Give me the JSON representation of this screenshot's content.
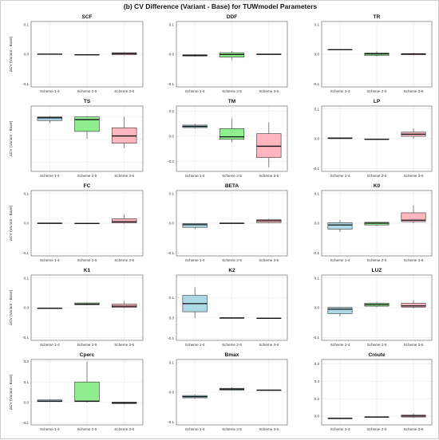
{
  "title": "(b) CV Difference (Variant - Base) for TUWmodel Parameters",
  "ylabel": "ΔCV (Variant - Base)",
  "colors": {
    "Scheme 1-4": "#add8e6",
    "Scheme 2-5": "#90ee90",
    "Scheme 3-6": "#ffb6c1"
  },
  "chart_data": [
    {
      "type": "box",
      "title": "SCF",
      "ylim": [
        -0.11,
        0.11
      ],
      "yticks": [
        -0.1,
        0,
        0.1
      ],
      "tick_labels": [
        "-0.1",
        "0.0",
        "0.1"
      ],
      "categories": [
        "Scheme 1-4",
        "Scheme 2-5",
        "Scheme 3-6"
      ],
      "boxes": [
        {
          "min": 0.0,
          "q1": 0.0,
          "median": 0.0,
          "q3": 0.001,
          "max": 0.001
        },
        {
          "min": -0.002,
          "q1": -0.002,
          "median": -0.002,
          "q3": -0.001,
          "max": -0.001
        },
        {
          "min": -0.004,
          "q1": -0.002,
          "median": 0.002,
          "q3": 0.005,
          "max": 0.007
        }
      ]
    },
    {
      "type": "box",
      "title": "DDF",
      "ylim": [
        -0.11,
        0.11
      ],
      "yticks": [
        -0.1,
        0,
        0.1
      ],
      "tick_labels": [
        "-0.1",
        "0.0",
        "0.1"
      ],
      "categories": [
        "Scheme 1-4",
        "Scheme 2-5",
        "Scheme 3-6"
      ],
      "boxes": [
        {
          "min": -0.008,
          "q1": -0.006,
          "median": -0.004,
          "q3": -0.002,
          "max": 0.0
        },
        {
          "min": -0.02,
          "q1": -0.01,
          "median": -0.001,
          "q3": 0.005,
          "max": 0.01
        },
        {
          "min": -0.002,
          "q1": -0.001,
          "median": 0.0,
          "q3": 0.0,
          "max": 0.001
        }
      ]
    },
    {
      "type": "box",
      "title": "TR",
      "ylim": [
        -0.11,
        0.11
      ],
      "yticks": [
        -0.1,
        0,
        0.1
      ],
      "tick_labels": [
        "-0.1",
        "0.0",
        "0.1"
      ],
      "categories": [
        "Scheme 1-4",
        "Scheme 2-5",
        "Scheme 3-6"
      ],
      "boxes": [
        {
          "min": 0.014,
          "q1": 0.015,
          "median": 0.015,
          "q3": 0.016,
          "max": 0.016
        },
        {
          "min": -0.008,
          "q1": -0.004,
          "median": 0.001,
          "q3": 0.004,
          "max": 0.01
        },
        {
          "min": -0.004,
          "q1": -0.002,
          "median": 0.001,
          "q3": 0.002,
          "max": 0.005
        }
      ]
    },
    {
      "type": "box",
      "title": "TS",
      "ylim": [
        -0.06,
        0.012
      ],
      "yticks": [
        -0.05,
        -0.025,
        0
      ],
      "tick_labels": [
        "",
        "",
        ""
      ],
      "categories": [
        "Scheme 1-4",
        "Scheme 2-5",
        "Scheme 3-6"
      ],
      "boxes": [
        {
          "min": -0.007,
          "q1": -0.004,
          "median": -0.001,
          "q3": 0.0,
          "max": 0.001
        },
        {
          "min": -0.024,
          "q1": -0.016,
          "median": -0.003,
          "q3": 0.0,
          "max": 0.001
        },
        {
          "min": -0.034,
          "q1": -0.029,
          "median": -0.021,
          "q3": -0.012,
          "max": 0.0
        }
      ]
    },
    {
      "type": "box",
      "title": "TM",
      "ylim": [
        -0.28,
        0.24
      ],
      "yticks": [
        -0.2,
        0,
        0.2
      ],
      "tick_labels": [
        "-0.2",
        "0.0",
        "0.2"
      ],
      "categories": [
        "Scheme 1-4",
        "Scheme 2-5",
        "Scheme 3-6"
      ],
      "boxes": [
        {
          "min": 0.06,
          "q1": 0.068,
          "median": 0.078,
          "q3": 0.088,
          "max": 0.1
        },
        {
          "min": -0.05,
          "q1": -0.025,
          "median": -0.005,
          "q3": 0.06,
          "max": 0.14
        },
        {
          "min": -0.25,
          "q1": -0.17,
          "median": -0.08,
          "q3": 0.02,
          "max": 0.11
        }
      ]
    },
    {
      "type": "box",
      "title": "LP",
      "ylim": [
        -0.11,
        0.11
      ],
      "yticks": [
        -0.1,
        0,
        0.1
      ],
      "tick_labels": [
        "-0.1",
        "0.0",
        "0.1"
      ],
      "categories": [
        "Scheme 1-4",
        "Scheme 2-5",
        "Scheme 3-6"
      ],
      "boxes": [
        {
          "min": 0.0,
          "q1": 0.0,
          "median": 0.002,
          "q3": 0.003,
          "max": 0.004
        },
        {
          "min": -0.003,
          "q1": -0.003,
          "median": -0.002,
          "q3": -0.001,
          "max": -0.001
        },
        {
          "min": 0.0,
          "q1": 0.008,
          "median": 0.015,
          "q3": 0.022,
          "max": 0.035
        }
      ]
    },
    {
      "type": "box",
      "title": "FC",
      "ylim": [
        -0.11,
        0.11
      ],
      "yticks": [
        -0.1,
        0,
        0.1
      ],
      "tick_labels": [
        "-0.1",
        "0.0",
        "0.1"
      ],
      "categories": [
        "Scheme 1-4",
        "Scheme 2-5",
        "Scheme 3-6"
      ],
      "boxes": [
        {
          "min": 0.0,
          "q1": 0.0,
          "median": 0.0,
          "q3": 0.0,
          "max": 0.0
        },
        {
          "min": -0.003,
          "q1": -0.002,
          "median": -0.001,
          "q3": 0.0,
          "max": 0.001
        },
        {
          "min": -0.002,
          "q1": 0.001,
          "median": 0.005,
          "q3": 0.015,
          "max": 0.03
        }
      ]
    },
    {
      "type": "box",
      "title": "BETA",
      "ylim": [
        -0.11,
        0.11
      ],
      "yticks": [
        -0.1,
        0,
        0.1
      ],
      "tick_labels": [
        "-0.1",
        "0.0",
        "0.1"
      ],
      "categories": [
        "Scheme 1-4",
        "Scheme 2-5",
        "Scheme 3-6"
      ],
      "boxes": [
        {
          "min": -0.02,
          "q1": -0.014,
          "median": -0.005,
          "q3": -0.001,
          "max": 0.0
        },
        {
          "min": -0.001,
          "q1": -0.001,
          "median": 0.0,
          "q3": 0.0,
          "max": 0.001
        },
        {
          "min": 0.0,
          "q1": 0.002,
          "median": 0.008,
          "q3": 0.012,
          "max": 0.015
        }
      ]
    },
    {
      "type": "box",
      "title": "K0",
      "ylim": [
        -0.11,
        0.11
      ],
      "yticks": [
        -0.1,
        0,
        0.1
      ],
      "tick_labels": [
        "-0.1",
        "0.0",
        "0.1"
      ],
      "categories": [
        "Scheme 1-4",
        "Scheme 2-5",
        "Scheme 3-6"
      ],
      "boxes": [
        {
          "min": -0.03,
          "q1": -0.02,
          "median": -0.006,
          "q3": 0.002,
          "max": 0.01
        },
        {
          "min": -0.01,
          "q1": -0.006,
          "median": 0.0,
          "q3": 0.003,
          "max": 0.004
        },
        {
          "min": 0.0,
          "q1": 0.005,
          "median": 0.01,
          "q3": 0.035,
          "max": 0.06
        }
      ]
    },
    {
      "type": "box",
      "title": "K1",
      "ylim": [
        -0.11,
        0.11
      ],
      "yticks": [
        -0.1,
        0,
        0.1
      ],
      "tick_labels": [
        "-0.1",
        "0.0",
        "0.1"
      ],
      "categories": [
        "Scheme 1-4",
        "Scheme 2-5",
        "Scheme 3-6"
      ],
      "boxes": [
        {
          "min": -0.004,
          "q1": -0.003,
          "median": -0.002,
          "q3": -0.001,
          "max": 0.0
        },
        {
          "min": 0.008,
          "q1": 0.01,
          "median": 0.012,
          "q3": 0.016,
          "max": 0.018
        },
        {
          "min": -0.002,
          "q1": 0.001,
          "median": 0.005,
          "q3": 0.012,
          "max": 0.022
        }
      ]
    },
    {
      "type": "box",
      "title": "K2",
      "ylim": [
        -0.11,
        0.21
      ],
      "yticks": [
        -0.1,
        0,
        0.1,
        0.2
      ],
      "tick_labels": [
        "-0.1",
        "0.0",
        "0.1",
        ""
      ],
      "categories": [
        "Scheme 1-4",
        "Scheme 2-5",
        "Scheme 3-6"
      ],
      "boxes": [
        {
          "min": 0.0,
          "q1": 0.03,
          "median": 0.07,
          "q3": 0.11,
          "max": 0.15
        },
        {
          "min": 0.0,
          "q1": 0.0,
          "median": 0.0,
          "q3": 0.0,
          "max": 0.0
        },
        {
          "min": -0.004,
          "q1": -0.003,
          "median": -0.002,
          "q3": -0.001,
          "max": 0.0
        }
      ]
    },
    {
      "type": "box",
      "title": "LUZ",
      "ylim": [
        -0.11,
        0.11
      ],
      "yticks": [
        -0.1,
        0,
        0.1
      ],
      "tick_labels": [
        "-0.1",
        "0.0",
        "0.1"
      ],
      "categories": [
        "Scheme 1-4",
        "Scheme 2-5",
        "Scheme 3-6"
      ],
      "boxes": [
        {
          "min": -0.03,
          "q1": -0.02,
          "median": -0.005,
          "q3": 0.001,
          "max": 0.002
        },
        {
          "min": 0.002,
          "q1": 0.005,
          "median": 0.01,
          "q3": 0.015,
          "max": 0.02
        },
        {
          "min": -0.002,
          "q1": 0.002,
          "median": 0.006,
          "q3": 0.015,
          "max": 0.025
        }
      ]
    },
    {
      "type": "box",
      "title": "Cperc",
      "ylim": [
        -0.11,
        0.21
      ],
      "yticks": [
        -0.1,
        0,
        0.1,
        0.2
      ],
      "tick_labels": [
        "-0.1",
        "0.0",
        "0.1",
        "0.2"
      ],
      "categories": [
        "Scheme 1-4",
        "Scheme 2-5",
        "Scheme 3-6"
      ],
      "boxes": [
        {
          "min": 0.002,
          "q1": 0.004,
          "median": 0.006,
          "q3": 0.012,
          "max": 0.015
        },
        {
          "min": 0.0,
          "q1": 0.004,
          "median": 0.006,
          "q3": 0.1,
          "max": 0.2
        },
        {
          "min": -0.01,
          "q1": -0.006,
          "median": -0.002,
          "q3": 0.001,
          "max": 0.003
        }
      ]
    },
    {
      "type": "box",
      "title": "Bmax",
      "ylim": [
        -0.11,
        0.11
      ],
      "yticks": [
        -0.1,
        0,
        0.1
      ],
      "tick_labels": [
        "-0.1",
        "0.0",
        "0.1"
      ],
      "categories": [
        "Scheme 1-4",
        "Scheme 2-5",
        "Scheme 3-6"
      ],
      "boxes": [
        {
          "min": -0.022,
          "q1": -0.019,
          "median": -0.015,
          "q3": -0.011,
          "max": -0.008
        },
        {
          "min": 0.005,
          "q1": 0.007,
          "median": 0.01,
          "q3": 0.013,
          "max": 0.016
        },
        {
          "min": 0.005,
          "q1": 0.006,
          "median": 0.007,
          "q3": 0.007,
          "max": 0.008
        }
      ]
    },
    {
      "type": "box",
      "title": "Croute",
      "ylim": [
        -0.1,
        0.65
      ],
      "yticks": [
        0,
        0.2,
        0.4,
        0.6
      ],
      "tick_labels": [
        "0.0",
        "0.2",
        "0.4",
        "0.6"
      ],
      "categories": [
        "Scheme 1-4",
        "Scheme 2-5",
        "Scheme 3-6"
      ],
      "boxes": [
        {
          "min": -0.035,
          "q1": -0.03,
          "median": -0.026,
          "q3": -0.022,
          "max": -0.02
        },
        {
          "min": -0.012,
          "q1": -0.011,
          "median": -0.01,
          "q3": -0.009,
          "max": -0.008
        },
        {
          "min": -0.02,
          "q1": -0.01,
          "median": 0.002,
          "q3": 0.012,
          "max": 0.03
        }
      ]
    }
  ]
}
